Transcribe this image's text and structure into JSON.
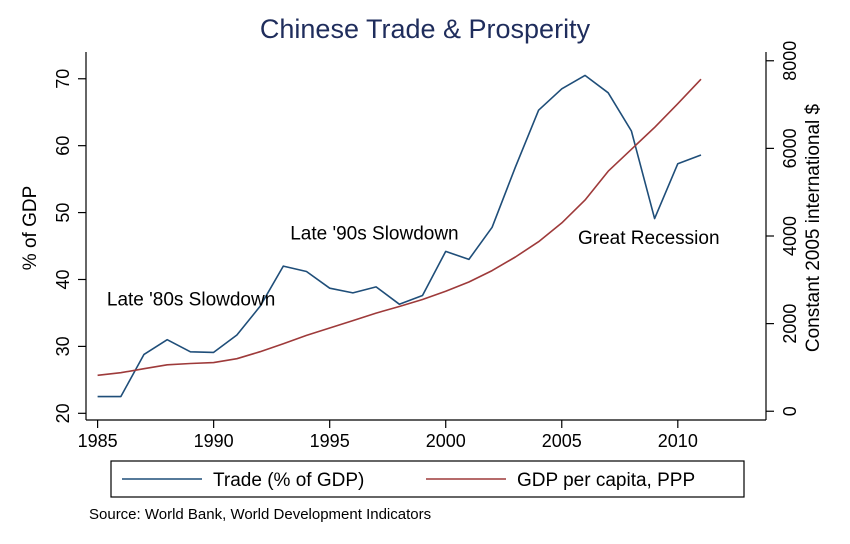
{
  "chart_data": {
    "type": "line",
    "title": "Chinese Trade & Prosperity",
    "x": [
      1985,
      1986,
      1987,
      1988,
      1989,
      1990,
      1991,
      1992,
      1993,
      1994,
      1995,
      1996,
      1997,
      1998,
      1999,
      2000,
      2001,
      2002,
      2003,
      2004,
      2005,
      2006,
      2007,
      2008,
      2009,
      2010,
      2011
    ],
    "series": [
      {
        "name": "Trade (% of GDP)",
        "axis": "left",
        "color": "#1f4e79",
        "values": [
          22.5,
          22.5,
          28.8,
          31.0,
          29.2,
          29.1,
          31.7,
          36.0,
          42.0,
          41.2,
          38.7,
          38.0,
          38.9,
          36.3,
          37.6,
          44.2,
          43.0,
          47.8,
          56.8,
          65.3,
          68.5,
          70.5,
          67.9,
          62.2,
          49.1,
          57.3,
          58.6
        ]
      },
      {
        "name": "GDP per capita, PPP",
        "axis": "right",
        "color": "#9e3a3a",
        "values": [
          820,
          880,
          970,
          1060,
          1090,
          1110,
          1200,
          1360,
          1540,
          1730,
          1900,
          2070,
          2240,
          2390,
          2550,
          2740,
          2950,
          3210,
          3520,
          3870,
          4300,
          4820,
          5480,
          5980,
          6480,
          7020,
          7580
        ]
      }
    ],
    "xticks": [
      "1985",
      "1990",
      "1995",
      "2000",
      "2005",
      "2010"
    ],
    "ylabel": "% of GDP",
    "ylim": [
      19,
      74
    ],
    "yticks": [
      "20",
      "30",
      "40",
      "50",
      "60",
      "70"
    ],
    "y2label": "Constant 2005 international $",
    "y2lim": [
      -200,
      8200
    ],
    "y2ticks": [
      "0",
      "2000",
      "4000",
      "6000",
      "8000"
    ],
    "xlim": [
      1984.5,
      2013.8
    ],
    "grid": false,
    "legend_position": "bottom",
    "annotations": [
      {
        "text": "Late '80s Slowdown",
        "x": 1985.4,
        "y": 36.1
      },
      {
        "text": "Late '90s Slowdown",
        "x": 1993.3,
        "y": 46.0
      },
      {
        "text": "Great Recession",
        "x": 2005.7,
        "y": 45.3
      }
    ],
    "source": "Source: World Bank, World Development Indicators"
  }
}
